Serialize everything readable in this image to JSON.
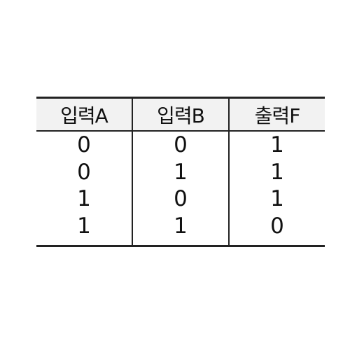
{
  "table": {
    "headers": [
      "입력A",
      "입력B",
      "출력F"
    ],
    "rows": [
      [
        "0",
        "0",
        "1"
      ],
      [
        "0",
        "1",
        "1"
      ],
      [
        "1",
        "0",
        "1"
      ],
      [
        "1",
        "1",
        "0"
      ]
    ]
  }
}
